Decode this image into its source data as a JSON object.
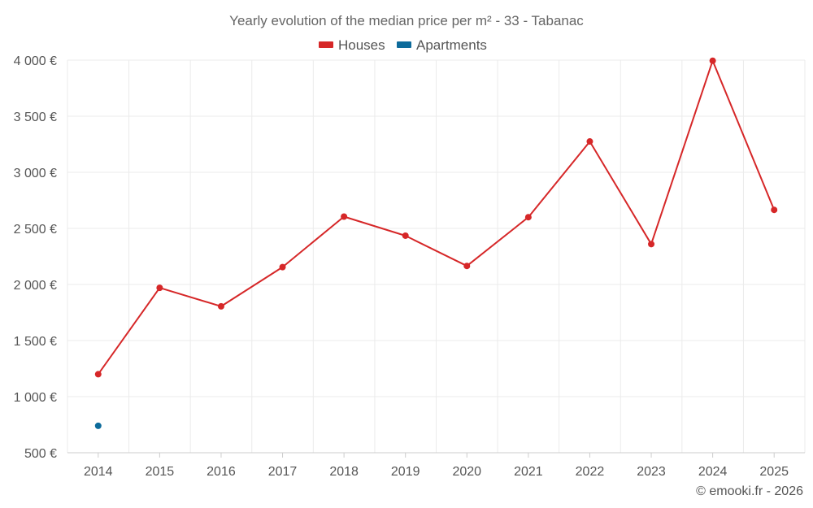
{
  "chart_data": {
    "type": "line",
    "title": "Yearly evolution of the median price per m² - 33 - Tabanac",
    "categories": [
      "2014",
      "2015",
      "2016",
      "2017",
      "2018",
      "2019",
      "2020",
      "2021",
      "2022",
      "2023",
      "2024",
      "2025"
    ],
    "series": [
      {
        "name": "Houses",
        "color": "#d62728",
        "values": [
          1200,
          1970,
          1805,
          2155,
          2605,
          2435,
          2165,
          2600,
          3275,
          2360,
          3995,
          2665
        ]
      },
      {
        "name": "Apartments",
        "color": "#0d6b9b",
        "values": [
          740,
          null,
          null,
          null,
          null,
          null,
          null,
          null,
          null,
          null,
          null,
          null
        ]
      }
    ],
    "ylim": [
      500,
      4000
    ],
    "yticks": [
      500,
      1000,
      1500,
      2000,
      2500,
      3000,
      3500,
      4000
    ],
    "ytick_labels": [
      "500 €",
      "1 000 €",
      "1 500 €",
      "2 000 €",
      "2 500 €",
      "3 000 €",
      "3 500 €",
      "4 000 €"
    ],
    "grid": true,
    "legend_position": "top-center",
    "xlabel": "",
    "ylabel": ""
  },
  "credit": "© emooki.fr - 2026"
}
